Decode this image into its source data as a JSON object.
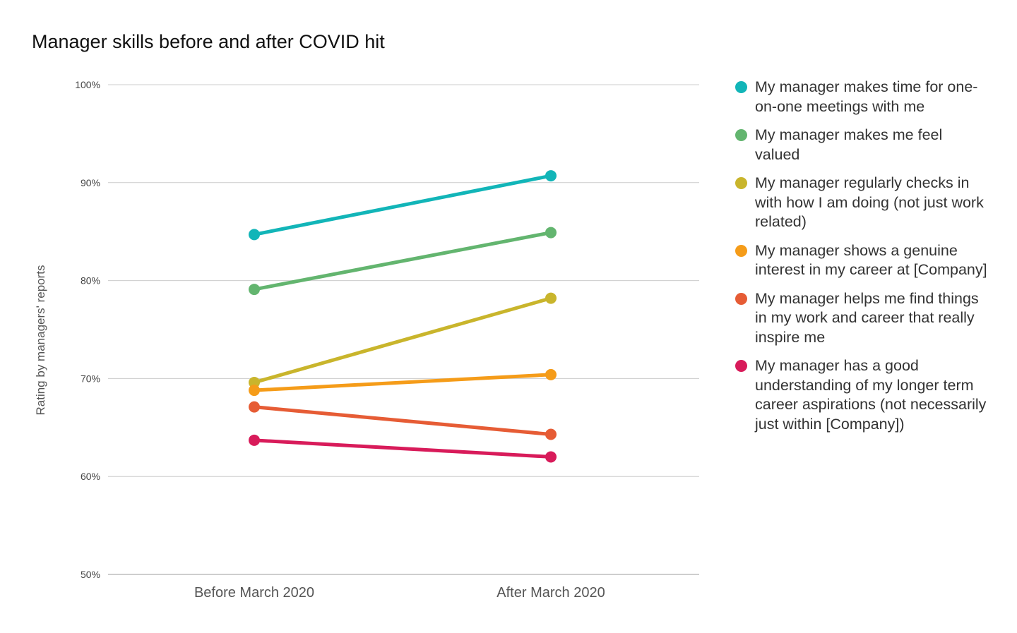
{
  "chart_data": {
    "type": "line",
    "title": "Manager skills before and after COVID hit",
    "xlabel": "",
    "ylabel": "Rating by managers' reports",
    "categories": [
      "Before March 2020",
      "After March 2020"
    ],
    "ylim": [
      0.5,
      1.0
    ],
    "yticks": [
      "50%",
      "60%",
      "70%",
      "80%",
      "90%",
      "100%"
    ],
    "grid": true,
    "legend_position": "right",
    "series": [
      {
        "name": "My manager makes time for one-on-one meetings with me",
        "color": "#12b5b8",
        "values": [
          0.847,
          0.907
        ]
      },
      {
        "name": "My manager makes me feel valued",
        "color": "#63b56f",
        "values": [
          0.791,
          0.849
        ]
      },
      {
        "name": "My manager regularly checks in with how I am doing (not just work related)",
        "color": "#c9b52c",
        "values": [
          0.696,
          0.782
        ]
      },
      {
        "name": "My manager shows a genuine interest in my career at [Company]",
        "color": "#f59c19",
        "values": [
          0.688,
          0.704
        ]
      },
      {
        "name": "My manager helps me find things in my work and career that really inspire me",
        "color": "#e65c35",
        "values": [
          0.671,
          0.643
        ]
      },
      {
        "name": "My manager has a good understanding of my longer term career aspirations (not necessarily just within [Company])",
        "color": "#d81b5a",
        "values": [
          0.637,
          0.62
        ]
      }
    ]
  }
}
